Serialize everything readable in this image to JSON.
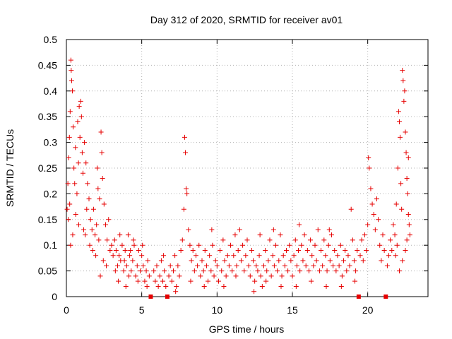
{
  "chart_data": {
    "type": "scatter",
    "title": "Day 312 of 2020, SRMTID for receiver av01",
    "xlabel": "GPS time / hours",
    "ylabel": "SRMTID / TECUs",
    "xlim": [
      0,
      24
    ],
    "ylim": [
      0,
      0.5
    ],
    "x_ticks": [
      0,
      5,
      10,
      15,
      20
    ],
    "x_tick_labels": [
      "0",
      "5",
      "10",
      "15",
      "20"
    ],
    "y_ticks": [
      0,
      0.05,
      0.1,
      0.15,
      0.2,
      0.25,
      0.3,
      0.35,
      0.4,
      0.45,
      0.5
    ],
    "y_tick_labels": [
      "0",
      "0.05",
      "0.1",
      "0.15",
      "0.2",
      "0.25",
      "0.3",
      "0.35",
      "0.4",
      "0.45",
      "0.5"
    ],
    "grid": true,
    "marker": "plus",
    "color": "#e60000",
    "gap_markers_x": [
      5.6,
      6.7,
      19.4,
      21.2
    ],
    "series": [
      {
        "name": "SRMTID",
        "points": [
          [
            0.05,
            0.17
          ],
          [
            0.1,
            0.22
          ],
          [
            0.15,
            0.27
          ],
          [
            0.2,
            0.31
          ],
          [
            0.25,
            0.36
          ],
          [
            0.3,
            0.46
          ],
          [
            0.32,
            0.44
          ],
          [
            0.35,
            0.42
          ],
          [
            0.4,
            0.4
          ],
          [
            0.45,
            0.33
          ],
          [
            0.5,
            0.25
          ],
          [
            0.55,
            0.22
          ],
          [
            0.6,
            0.29
          ],
          [
            0.7,
            0.2
          ],
          [
            0.75,
            0.34
          ],
          [
            0.8,
            0.26
          ],
          [
            0.85,
            0.37
          ],
          [
            0.9,
            0.31
          ],
          [
            0.95,
            0.38
          ],
          [
            1.0,
            0.35
          ],
          [
            1.05,
            0.28
          ],
          [
            1.1,
            0.24
          ],
          [
            1.2,
            0.3
          ],
          [
            1.3,
            0.26
          ],
          [
            1.4,
            0.22
          ],
          [
            1.5,
            0.19
          ],
          [
            1.6,
            0.15
          ],
          [
            1.7,
            0.13
          ],
          [
            1.8,
            0.17
          ],
          [
            1.9,
            0.12
          ],
          [
            2.0,
            0.14
          ],
          [
            2.1,
            0.21
          ],
          [
            2.2,
            0.19
          ],
          [
            2.3,
            0.32
          ],
          [
            2.35,
            0.28
          ],
          [
            2.4,
            0.23
          ],
          [
            2.5,
            0.18
          ],
          [
            2.6,
            0.14
          ],
          [
            2.7,
            0.11
          ],
          [
            2.8,
            0.15
          ],
          [
            2.9,
            0.09
          ],
          [
            3.0,
            0.1
          ],
          [
            3.1,
            0.08
          ],
          [
            0.12,
            0.15
          ],
          [
            0.22,
            0.18
          ],
          [
            0.42,
            0.12
          ],
          [
            0.62,
            0.16
          ],
          [
            0.82,
            0.14
          ],
          [
            1.15,
            0.13
          ],
          [
            1.35,
            0.17
          ],
          [
            1.55,
            0.1
          ],
          [
            1.75,
            0.09
          ],
          [
            1.95,
            0.08
          ],
          [
            2.15,
            0.11
          ],
          [
            2.45,
            0.07
          ],
          [
            2.65,
            0.06
          ],
          [
            2.25,
            0.04
          ],
          [
            0.28,
            0.1
          ],
          [
            1.25,
            0.12
          ],
          [
            2.05,
            0.25
          ],
          [
            3.2,
            0.11
          ],
          [
            3.3,
            0.09
          ],
          [
            3.4,
            0.06
          ],
          [
            3.5,
            0.08
          ],
          [
            3.6,
            0.07
          ],
          [
            3.7,
            0.1
          ],
          [
            3.8,
            0.05
          ],
          [
            3.9,
            0.09
          ],
          [
            4.0,
            0.06
          ],
          [
            4.1,
            0.12
          ],
          [
            4.2,
            0.08
          ],
          [
            4.3,
            0.05
          ],
          [
            4.4,
            0.07
          ],
          [
            4.5,
            0.1
          ],
          [
            4.6,
            0.04
          ],
          [
            4.7,
            0.06
          ],
          [
            4.8,
            0.09
          ],
          [
            4.9,
            0.05
          ],
          [
            5.0,
            0.08
          ],
          [
            5.1,
            0.06
          ],
          [
            5.2,
            0.03
          ],
          [
            5.3,
            0.05
          ],
          [
            5.4,
            0.07
          ],
          [
            5.5,
            0.04
          ],
          [
            3.25,
            0.05
          ],
          [
            3.55,
            0.12
          ],
          [
            3.85,
            0.07
          ],
          [
            4.15,
            0.04
          ],
          [
            4.45,
            0.11
          ],
          [
            4.75,
            0.03
          ],
          [
            5.05,
            0.1
          ],
          [
            5.35,
            0.02
          ],
          [
            3.45,
            0.03
          ],
          [
            4.25,
            0.09
          ],
          [
            5.8,
            0.05
          ],
          [
            5.9,
            0.03
          ],
          [
            6.0,
            0.06
          ],
          [
            6.1,
            0.02
          ],
          [
            6.2,
            0.04
          ],
          [
            6.3,
            0.07
          ],
          [
            6.4,
            0.03
          ],
          [
            6.5,
            0.05
          ],
          [
            6.6,
            0.02
          ],
          [
            6.8,
            0.04
          ],
          [
            6.9,
            0.06
          ],
          [
            7.0,
            0.03
          ],
          [
            7.1,
            0.05
          ],
          [
            7.2,
            0.08
          ],
          [
            7.3,
            0.02
          ],
          [
            7.4,
            0.06
          ],
          [
            7.5,
            0.04
          ],
          [
            7.6,
            0.09
          ],
          [
            7.7,
            0.11
          ],
          [
            7.8,
            0.17
          ],
          [
            7.85,
            0.31
          ],
          [
            7.9,
            0.28
          ],
          [
            7.95,
            0.21
          ],
          [
            8.0,
            0.2
          ],
          [
            8.1,
            0.13
          ],
          [
            8.2,
            0.1
          ],
          [
            8.3,
            0.07
          ],
          [
            8.4,
            0.09
          ],
          [
            8.5,
            0.05
          ],
          [
            8.6,
            0.08
          ],
          [
            8.7,
            0.06
          ],
          [
            8.8,
            0.1
          ],
          [
            8.9,
            0.04
          ],
          [
            9.0,
            0.07
          ],
          [
            9.1,
            0.05
          ],
          [
            9.2,
            0.09
          ],
          [
            9.3,
            0.06
          ],
          [
            9.4,
            0.03
          ],
          [
            9.5,
            0.08
          ],
          [
            9.6,
            0.05
          ],
          [
            9.7,
            0.1
          ],
          [
            9.8,
            0.04
          ],
          [
            9.9,
            0.07
          ],
          [
            10.0,
            0.06
          ],
          [
            10.1,
            0.03
          ],
          [
            10.2,
            0.09
          ],
          [
            10.3,
            0.05
          ],
          [
            10.4,
            0.11
          ],
          [
            10.5,
            0.07
          ],
          [
            10.6,
            0.04
          ],
          [
            10.7,
            0.08
          ],
          [
            10.8,
            0.06
          ],
          [
            10.9,
            0.1
          ],
          [
            11.0,
            0.05
          ],
          [
            11.1,
            0.08
          ],
          [
            11.2,
            0.12
          ],
          [
            11.3,
            0.06
          ],
          [
            11.4,
            0.09
          ],
          [
            11.5,
            0.13
          ],
          [
            11.6,
            0.07
          ],
          [
            11.7,
            0.1
          ],
          [
            11.8,
            0.05
          ],
          [
            11.9,
            0.08
          ],
          [
            12.0,
            0.11
          ],
          [
            12.1,
            0.06
          ],
          [
            12.2,
            0.04
          ],
          [
            12.3,
            0.09
          ],
          [
            12.4,
            0.07
          ],
          [
            12.5,
            0.03
          ],
          [
            12.6,
            0.06
          ],
          [
            12.7,
            0.05
          ],
          [
            12.8,
            0.08
          ],
          [
            12.9,
            0.04
          ],
          [
            13.0,
            0.02
          ],
          [
            13.1,
            0.06
          ],
          [
            13.2,
            0.09
          ],
          [
            13.3,
            0.05
          ],
          [
            13.4,
            0.07
          ],
          [
            13.5,
            0.11
          ],
          [
            13.6,
            0.04
          ],
          [
            13.7,
            0.08
          ],
          [
            13.8,
            0.06
          ],
          [
            13.9,
            0.1
          ],
          [
            14.0,
            0.05
          ],
          [
            14.1,
            0.07
          ],
          [
            14.2,
            0.12
          ],
          [
            14.3,
            0.04
          ],
          [
            14.4,
            0.08
          ],
          [
            14.5,
            0.06
          ],
          [
            14.6,
            0.09
          ],
          [
            14.7,
            0.05
          ],
          [
            14.8,
            0.1
          ],
          [
            14.9,
            0.07
          ],
          [
            15.0,
            0.04
          ],
          [
            15.1,
            0.08
          ],
          [
            15.2,
            0.11
          ],
          [
            15.3,
            0.06
          ],
          [
            15.4,
            0.09
          ],
          [
            15.5,
            0.05
          ],
          [
            15.6,
            0.1
          ],
          [
            15.7,
            0.07
          ],
          [
            15.8,
            0.12
          ],
          [
            15.9,
            0.06
          ],
          [
            16.0,
            0.09
          ],
          [
            16.1,
            0.05
          ],
          [
            16.2,
            0.11
          ],
          [
            16.3,
            0.08
          ],
          [
            16.4,
            0.06
          ],
          [
            16.5,
            0.1
          ],
          [
            16.6,
            0.07
          ],
          [
            16.7,
            0.13
          ],
          [
            16.8,
            0.05
          ],
          [
            16.9,
            0.09
          ],
          [
            17.0,
            0.06
          ],
          [
            17.1,
            0.11
          ],
          [
            17.2,
            0.08
          ],
          [
            17.3,
            0.05
          ],
          [
            17.4,
            0.1
          ],
          [
            17.5,
            0.07
          ],
          [
            17.6,
            0.12
          ],
          [
            17.7,
            0.06
          ],
          [
            17.8,
            0.09
          ],
          [
            17.9,
            0.05
          ],
          [
            18.0,
            0.08
          ],
          [
            18.1,
            0.06
          ],
          [
            18.2,
            0.1
          ],
          [
            18.3,
            0.04
          ],
          [
            18.4,
            0.07
          ],
          [
            18.5,
            0.09
          ],
          [
            18.6,
            0.05
          ],
          [
            18.7,
            0.08
          ],
          [
            18.8,
            0.06
          ],
          [
            18.9,
            0.17
          ],
          [
            19.0,
            0.11
          ],
          [
            19.1,
            0.07
          ],
          [
            19.2,
            0.05
          ],
          [
            19.3,
            0.09
          ],
          [
            19.5,
            0.08
          ],
          [
            19.6,
            0.11
          ],
          [
            19.7,
            0.07
          ],
          [
            19.8,
            0.12
          ],
          [
            19.9,
            0.09
          ],
          [
            20.0,
            0.14
          ],
          [
            20.05,
            0.27
          ],
          [
            20.1,
            0.25
          ],
          [
            20.2,
            0.21
          ],
          [
            20.3,
            0.18
          ],
          [
            20.4,
            0.16
          ],
          [
            20.5,
            0.13
          ],
          [
            20.6,
            0.19
          ],
          [
            20.7,
            0.15
          ],
          [
            20.8,
            0.1
          ],
          [
            20.9,
            0.07
          ],
          [
            21.0,
            0.12
          ],
          [
            21.1,
            0.09
          ],
          [
            21.3,
            0.06
          ],
          [
            21.4,
            0.08
          ],
          [
            21.5,
            0.11
          ],
          [
            21.6,
            0.09
          ],
          [
            21.7,
            0.14
          ],
          [
            21.8,
            0.12
          ],
          [
            21.9,
            0.18
          ],
          [
            22.0,
            0.25
          ],
          [
            22.05,
            0.36
          ],
          [
            22.1,
            0.34
          ],
          [
            22.15,
            0.31
          ],
          [
            22.2,
            0.22
          ],
          [
            22.25,
            0.17
          ],
          [
            22.3,
            0.44
          ],
          [
            22.35,
            0.42
          ],
          [
            22.4,
            0.38
          ],
          [
            22.45,
            0.4
          ],
          [
            22.5,
            0.32
          ],
          [
            22.55,
            0.28
          ],
          [
            22.6,
            0.23
          ],
          [
            22.65,
            0.2
          ],
          [
            22.7,
            0.16
          ],
          [
            22.75,
            0.14
          ],
          [
            22.8,
            0.12
          ],
          [
            22.5,
            0.09
          ],
          [
            22.3,
            0.07
          ],
          [
            22.1,
            0.05
          ],
          [
            21.95,
            0.1
          ],
          [
            21.85,
            0.08
          ],
          [
            22.6,
            0.11
          ],
          [
            22.7,
            0.27
          ],
          [
            3.95,
            0.02
          ],
          [
            6.45,
            0.08
          ],
          [
            7.25,
            0.01
          ],
          [
            8.25,
            0.03
          ],
          [
            9.15,
            0.02
          ],
          [
            10.45,
            0.02
          ],
          [
            11.25,
            0.04
          ],
          [
            12.45,
            0.01
          ],
          [
            13.25,
            0.03
          ],
          [
            14.25,
            0.02
          ],
          [
            15.25,
            0.02
          ],
          [
            16.25,
            0.03
          ],
          [
            17.25,
            0.02
          ],
          [
            18.25,
            0.02
          ],
          [
            19.15,
            0.03
          ],
          [
            12.85,
            0.12
          ],
          [
            9.65,
            0.13
          ],
          [
            15.45,
            0.14
          ],
          [
            17.45,
            0.13
          ],
          [
            13.75,
            0.13
          ]
        ]
      }
    ]
  }
}
